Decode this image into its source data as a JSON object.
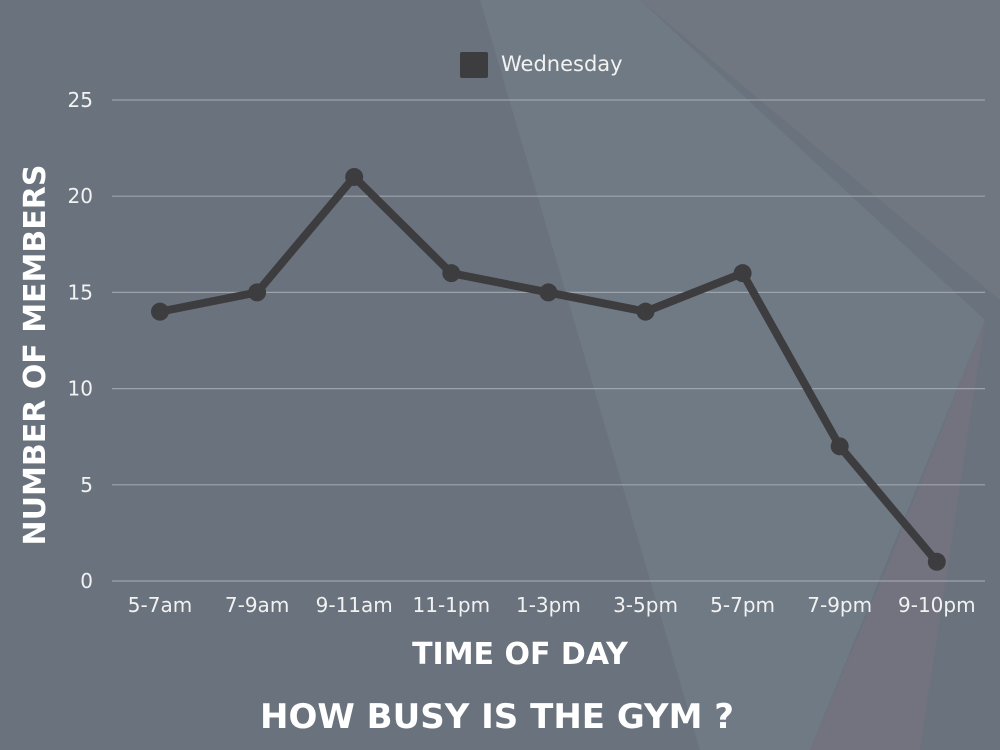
{
  "chart_data": {
    "type": "line",
    "title": "HOW BUSY IS THE GYM ?",
    "xlabel": "TIME OF DAY",
    "ylabel": "NUMBER OF MEMBERS",
    "categories": [
      "5-7am",
      "7-9am",
      "9-11am",
      "11-1pm",
      "1-3pm",
      "3-5pm",
      "5-7pm",
      "7-9pm",
      "9-10pm"
    ],
    "series": [
      {
        "name": "Wednesday",
        "values": [
          14,
          15,
          21,
          16,
          15,
          14,
          16,
          7,
          1
        ],
        "color": "#3d3d3f"
      }
    ],
    "ylim": [
      0,
      25
    ],
    "yticks": [
      0,
      5,
      10,
      15,
      20,
      25
    ],
    "grid": true,
    "legend_position": "top-center"
  },
  "colors": {
    "background": "#6a737d",
    "line": "#3d3d3f",
    "grid": "#a6acb3",
    "text": "#f2f2f2"
  }
}
